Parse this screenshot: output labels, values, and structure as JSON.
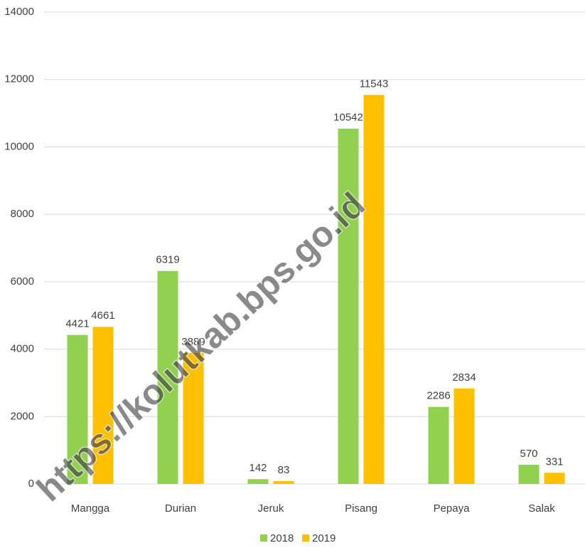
{
  "chart_data": {
    "type": "bar",
    "categories": [
      "Mangga",
      "Durian",
      "Jeruk",
      "Pisang",
      "Pepaya",
      "Salak"
    ],
    "series": [
      {
        "name": "2018",
        "color": "#92d050",
        "values": [
          4421,
          6319,
          142,
          10542,
          2286,
          570
        ]
      },
      {
        "name": "2019",
        "color": "#ffc000",
        "values": [
          4661,
          3889,
          83,
          11543,
          2834,
          331
        ]
      }
    ],
    "ylim": [
      0,
      14000
    ],
    "yticks": [
      0,
      2000,
      4000,
      6000,
      8000,
      10000,
      12000,
      14000
    ],
    "grid": true,
    "legend": "bottom"
  },
  "watermark": "https://kolutkab.bps.go.id"
}
